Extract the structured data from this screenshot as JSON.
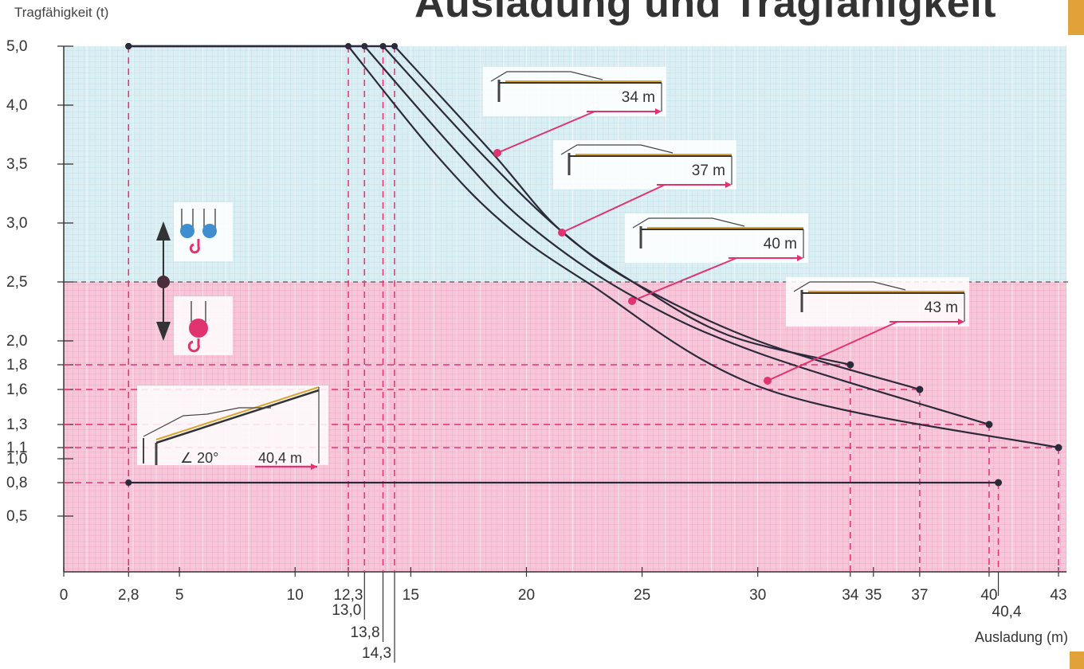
{
  "title": "Ausladung und Tragfähigkeit",
  "colors": {
    "upper_zone": "#dbeef3",
    "lower_zone": "#f7c6d8",
    "grid_upper": "#b7dbe8",
    "grid_lower": "#ef9fc0",
    "curve": "#2b2a3a",
    "dash": "#e0336f",
    "callout": "#e0336f",
    "accent": "#e2a23a"
  },
  "chart_data": {
    "type": "line",
    "title": "Ausladung und Tragfähigkeit",
    "xlabel": "Ausladung (m)",
    "ylabel": "Tragfähigkeit (t)",
    "xlim": [
      0,
      43
    ],
    "ylim": [
      0,
      5.0
    ],
    "y_scale": "non-linear, graduated",
    "x_ticks": [
      "0",
      "2,8",
      "5",
      "10",
      "12,3",
      "15",
      "20",
      "25",
      "30",
      "34",
      "35",
      "37",
      "40",
      "43"
    ],
    "x_ticks_low": [
      "13,0",
      "13,8",
      "14,3"
    ],
    "x_tick_extra": "40,4",
    "y_ticks": [
      "5,0",
      "4,0",
      "3,5",
      "3,0",
      "2,5",
      "2,0",
      "1,8",
      "1,6",
      "1,3",
      "1,1",
      "1,0",
      "0,8",
      "0,5"
    ],
    "zone_boundary_t": 2.5,
    "grid": true,
    "series": [
      {
        "name": "34 m",
        "x": [
          2.8,
          14.3,
          18.5,
          21.4,
          24.6,
          28.7,
          34.0
        ],
        "y": [
          5.0,
          5.0,
          3.6,
          2.95,
          2.5,
          2.05,
          1.8
        ]
      },
      {
        "name": "37 m",
        "x": [
          2.8,
          13.8,
          18.0,
          21.4,
          24.6,
          30.0,
          37.0
        ],
        "y": [
          5.0,
          5.0,
          3.6,
          2.95,
          2.5,
          2.0,
          1.6
        ]
      },
      {
        "name": "40 m",
        "x": [
          2.8,
          13.0,
          17.0,
          20.0,
          24.4,
          30.0,
          40.0
        ],
        "y": [
          5.0,
          5.0,
          3.6,
          3.0,
          2.4,
          1.9,
          1.3
        ]
      },
      {
        "name": "43 m",
        "x": [
          2.8,
          12.3,
          16.0,
          19.0,
          22.6,
          30.4,
          43.0
        ],
        "y": [
          5.0,
          5.0,
          3.6,
          3.0,
          2.5,
          1.6,
          1.1
        ]
      },
      {
        "name": "40,4 m",
        "x": [
          2.8,
          40.4
        ],
        "y": [
          0.8,
          0.8
        ]
      }
    ],
    "annotations": [
      "34 m",
      "37 m",
      "40 m",
      "43 m",
      "40,4 m",
      "20°"
    ]
  }
}
